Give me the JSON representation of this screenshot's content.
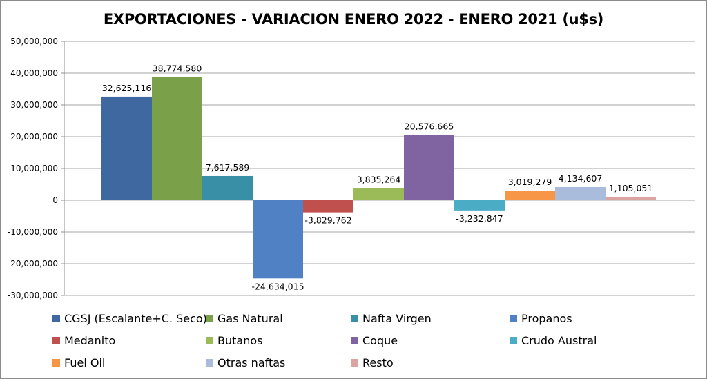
{
  "chart_data": {
    "type": "bar",
    "title": "EXPORTACIONES - VARIACION ENERO 2022 - ENERO 2021 (u$s)",
    "xlabel": "",
    "ylabel": "",
    "ylim": [
      -30000000,
      50000000
    ],
    "y_ticks": [
      50000000,
      40000000,
      30000000,
      20000000,
      10000000,
      0,
      -10000000,
      -20000000,
      -30000000
    ],
    "y_tick_labels": [
      "50,000,000",
      "40,000,000",
      "30,000,000",
      "20,000,000",
      "10,000,000",
      "0",
      "-10,000,000",
      "-20,000,000",
      "-30,000,000"
    ],
    "grid": true,
    "legend_position": "bottom",
    "series": [
      {
        "name": "CGSJ (Escalante+C. Seco)",
        "value": 32625116,
        "label": "32,625,116",
        "color": "#4068a0"
      },
      {
        "name": "Gas Natural",
        "value": 38774580,
        "label": "38,774,580",
        "color": "#7aa04a"
      },
      {
        "name": "Nafta Virgen",
        "value": 7617589,
        "label": "7,617,589",
        "color": "#388fa6"
      },
      {
        "name": "Propanos",
        "value": -24634015,
        "label": "-24,634,015",
        "color": "#4f81c4"
      },
      {
        "name": "Medanito",
        "value": -3829762,
        "label": "-3,829,762",
        "color": "#c0504d"
      },
      {
        "name": "Butanos",
        "value": 3835264,
        "label": "3,835,264",
        "color": "#9bbb59"
      },
      {
        "name": "Coque",
        "value": 20576665,
        "label": "20,576,665",
        "color": "#8064a2"
      },
      {
        "name": "Crudo Austral",
        "value": -3232847,
        "label": "-3,232,847",
        "color": "#4bacc6"
      },
      {
        "name": "Fuel Oil",
        "value": 3019279,
        "label": "3,019,279",
        "color": "#f79646"
      },
      {
        "name": "Otras naftas",
        "value": 4134607,
        "label": "4,134,607",
        "color": "#a9bcdc"
      },
      {
        "name": "Resto",
        "value": 1105051,
        "label": "1,105,051",
        "color": "#dca3a3"
      }
    ]
  }
}
